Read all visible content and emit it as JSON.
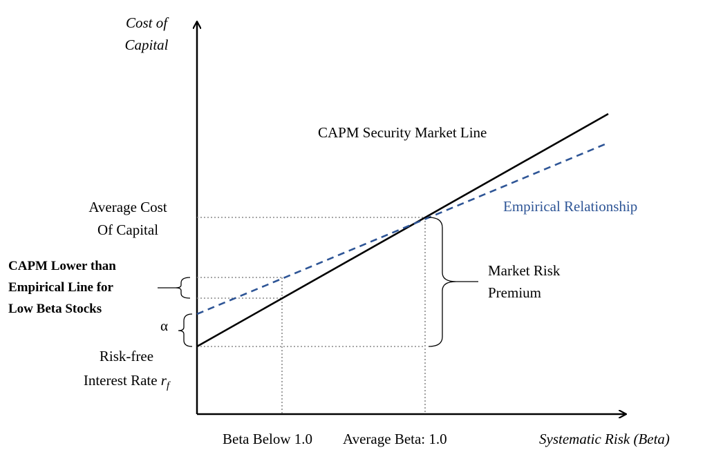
{
  "y_axis_label": [
    "Cost of",
    "Capital"
  ],
  "x_axis_label": "Systematic Risk (Beta)",
  "lines": {
    "capm": "CAPM Security Market Line",
    "empirical": "Empirical Relationship"
  },
  "labels": {
    "average_cost": [
      "Average Cost",
      "Of Capital"
    ],
    "capm_lower": [
      "CAPM Lower than",
      "Empirical Line for",
      "Low Beta Stocks"
    ],
    "alpha": "α",
    "risk_free": {
      "line1": "Risk-free",
      "line2": "Interest Rate",
      "symbol": "r",
      "subscript": "f"
    },
    "market_risk_premium": [
      "Market Risk",
      "Premium"
    ],
    "beta_below": "Beta Below 1.0",
    "average_beta": "Average Beta: 1.0"
  }
}
